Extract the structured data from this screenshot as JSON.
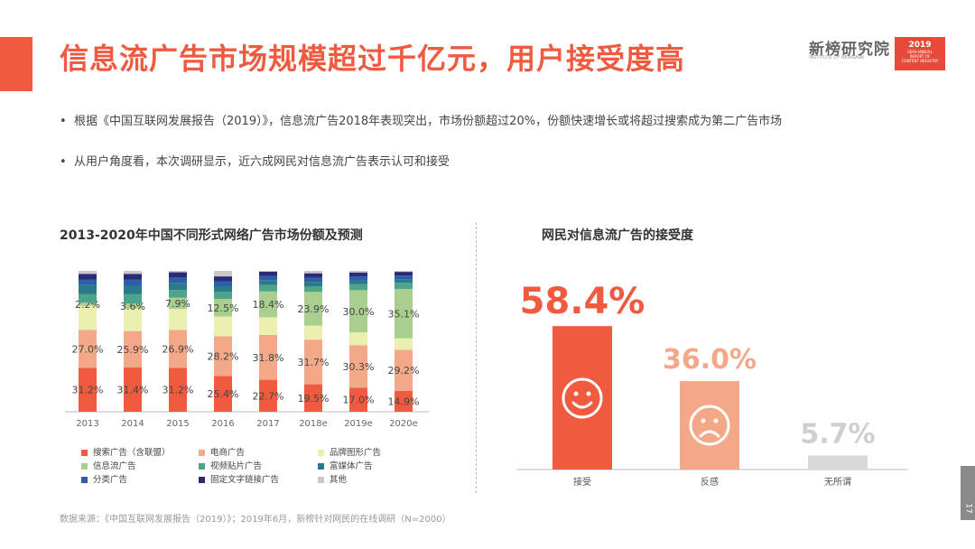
{
  "header": {
    "title": "信息流广告市场规模超过千亿元，用户接受度高",
    "brand": "新榜研究院",
    "brand_sub": "INSTITUTE OF NEWRANK",
    "badge_year": "2019",
    "badge_lines": [
      "SEMI-ANNUAL",
      "REPORT OF",
      "CONTENT INDUSTRY"
    ]
  },
  "bullets": [
    "根据《中国互联网发展报告（2019）》，信息流广告2018年表现突出，市场份额超过20%，份额快速增长或将超过搜索成为第二广告市场",
    "从用户角度看，本次调研显示，近六成网民对信息流广告表示认可和接受"
  ],
  "chart_data": [
    {
      "type": "bar",
      "stacked": true,
      "title": "2013-2020年中国不同形式网络广告市场份额及预测",
      "categories": [
        "2013",
        "2014",
        "2015",
        "2016",
        "2017",
        "2018e",
        "2019e",
        "2020e"
      ],
      "ylim": [
        0,
        100
      ],
      "series": [
        {
          "name": "搜索广告（含联盟）",
          "color": "#f05a3f",
          "values": [
            31.2,
            31.4,
            31.2,
            25.4,
            22.7,
            19.5,
            17.0,
            14.9
          ],
          "labels": [
            "31.2%",
            "31.4%",
            "31.2%",
            "25.4%",
            "22.7%",
            "19.5%",
            "17.0%",
            "14.9%"
          ]
        },
        {
          "name": "电商广告",
          "color": "#f3a988",
          "values": [
            27.0,
            25.9,
            26.9,
            28.2,
            31.8,
            31.7,
            30.3,
            29.2
          ],
          "labels": [
            "27.0%",
            "25.9%",
            "26.9%",
            "28.2%",
            "31.8%",
            "31.7%",
            "30.3%",
            "29.2%"
          ]
        },
        {
          "name": "品牌图形广告",
          "color": "#ebf0b0",
          "values": [
            17.0,
            16.0,
            15.0,
            14.0,
            12.5,
            10.0,
            9.0,
            8.0
          ]
        },
        {
          "name": "信息流广告",
          "color": "#a8cf8e",
          "values": [
            2.2,
            3.6,
            7.9,
            12.5,
            18.4,
            23.9,
            30.0,
            35.1
          ],
          "labels": [
            "2.2%",
            "3.6%",
            "7.9%",
            "12.5%",
            "18.4%",
            "23.9%",
            "30.0%",
            "35.1%"
          ]
        },
        {
          "name": "视频贴片广告",
          "color": "#4da488",
          "values": [
            6.0,
            6.5,
            5.5,
            5.0,
            4.5,
            4.0,
            4.2,
            4.3
          ]
        },
        {
          "name": "富媒体广告",
          "color": "#2b7a8a",
          "values": [
            6.5,
            6.0,
            5.0,
            4.0,
            3.5,
            3.0,
            2.8,
            2.5
          ]
        },
        {
          "name": "分类广告",
          "color": "#2d5fa8",
          "values": [
            4.0,
            4.5,
            4.0,
            3.5,
            3.0,
            3.0,
            2.8,
            2.7
          ]
        },
        {
          "name": "固定文字链接广告",
          "color": "#2a2a78",
          "values": [
            4.0,
            4.0,
            3.5,
            3.5,
            3.0,
            3.2,
            2.8,
            2.6
          ]
        },
        {
          "name": "其他",
          "color": "#c8c8c8",
          "values": [
            2.1,
            2.1,
            1.0,
            3.9,
            0.6,
            1.7,
            1.1,
            0.7
          ]
        }
      ],
      "legend_position": "bottom"
    },
    {
      "type": "bar",
      "title": "网民对信息流广告的接受度",
      "categories": [
        "接受",
        "反感",
        "无所谓"
      ],
      "values": [
        58.4,
        36.0,
        5.7
      ],
      "labels": [
        "58.4%",
        "36.0%",
        "5.7%"
      ],
      "colors": [
        "#f05a3f",
        "#f3a988",
        "#d9d9d9"
      ],
      "icons": [
        "smile-face-icon",
        "frown-face-icon",
        ""
      ],
      "ylim": [
        0,
        100
      ]
    }
  ],
  "source": "数据来源：《中国互联网发展报告（2019）》；2019年6月，新榜针对网民的在线调研（N=2000）",
  "page_number": "17"
}
